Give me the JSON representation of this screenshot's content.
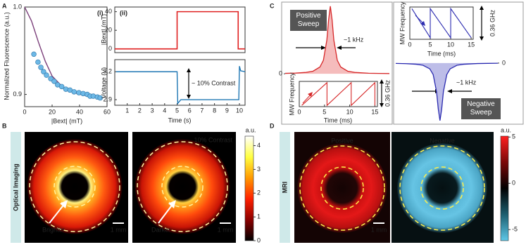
{
  "chart_data": [
    {
      "type": "line",
      "panel": "(i)",
      "ylabel": "Normalized Fluorescence (a.u.)",
      "xlabel": "|Bext| (mT)",
      "xlim": [
        0,
        60
      ],
      "ylim": [
        0.886,
        1.0
      ],
      "xticks": [
        0,
        20,
        40,
        60
      ],
      "yticks": [
        {
          "value": 1.0,
          "label": "1.0"
        },
        0.9
      ],
      "series": [
        {
          "color": "#7b3f7a",
          "x": [
            0,
            5,
            10,
            15,
            20,
            28,
            38,
            49,
            56
          ],
          "values": [
            1.0,
            0.984,
            0.96,
            0.938,
            0.921,
            0.908,
            0.901,
            0.897,
            0.896
          ]
        },
        {
          "color": "#6cb8e6",
          "marker": "circle",
          "x": [
            6.7,
            9.7,
            11.8,
            13.8,
            15.9,
            19,
            21.5,
            24,
            27,
            30,
            33,
            36,
            39.5,
            42.6,
            45.6,
            47.7,
            50,
            53,
            55
          ],
          "values": [
            0.946,
            0.937,
            0.931,
            0.926,
            0.922,
            0.918,
            0.915,
            0.911,
            0.909,
            0.906,
            0.905,
            0.903,
            0.902,
            0.901,
            0.9,
            0.898,
            0.898,
            0.897,
            0.896
          ]
        }
      ]
    },
    {
      "type": "line",
      "panel": "(ii)",
      "ylabel": "|Bext| (mT)",
      "xlim": [
        0,
        10.45
      ],
      "ylim": [
        -4,
        45
      ],
      "yticks": [
        0,
        20,
        40
      ],
      "series": [
        {
          "color": "#e02020",
          "x": [
            0,
            5,
            5,
            9.9,
            9.9,
            10.45
          ],
          "values": [
            0,
            0,
            40,
            40,
            0,
            0
          ]
        }
      ]
    },
    {
      "type": "line",
      "ylabel": "Voltage (V)",
      "xlabel": "Time (s)",
      "xlim": [
        0,
        10.45
      ],
      "ylim": [
        2.84,
        3.33
      ],
      "xticks": [
        1,
        2,
        3,
        4,
        5,
        6,
        7,
        8,
        9,
        10
      ],
      "yticks": [
        2.9,
        3.2
      ],
      "annotations": [
        "~ 10% Contrast"
      ],
      "series": [
        {
          "color": "#1f77b4",
          "x": [
            0.1,
            5.0,
            5.05,
            5.3,
            9.95,
            10.0,
            10.1,
            10.45
          ],
          "values": [
            3.2,
            3.2,
            2.86,
            2.9,
            2.9,
            3.26,
            3.21,
            3.2
          ]
        }
      ]
    },
    {
      "type": "area",
      "xlim": [
        0,
        30
      ],
      "ylim": [
        -0.03,
        1.03
      ],
      "yticks": [
        0
      ],
      "annotations": [
        "Positive Sweep",
        "~1 kHz"
      ],
      "series": [
        {
          "color": "#d62728",
          "fill": "#f5bcbc",
          "x": [
            0,
            3,
            6,
            8,
            10,
            11,
            12,
            12.5,
            13,
            13.5,
            14,
            15,
            16,
            18,
            20,
            24,
            27,
            30
          ],
          "values": [
            0.006,
            0.01,
            0.02,
            0.038,
            0.1,
            0.2,
            0.5,
            0.8,
            1,
            0.8,
            0.5,
            0.2,
            0.1,
            0.038,
            0.02,
            0.008,
            0.005,
            0.003
          ]
        }
      ]
    },
    {
      "type": "line",
      "ylabel": "MW Frequency",
      "xlabel": "Time (ms)",
      "xlim": [
        0,
        15.5
      ],
      "ylim": [
        -0.02,
        0.38
      ],
      "xticks": [
        0,
        5,
        10,
        15
      ],
      "annotations": [
        "0.36 GHz"
      ],
      "series": [
        {
          "color": "#d62728",
          "x": [
            0.5,
            5.5,
            5.5,
            10.3,
            10.3,
            15,
            15
          ],
          "values": [
            0,
            0.36,
            0,
            0.36,
            0,
            0.36,
            0
          ]
        }
      ]
    },
    {
      "type": "area",
      "xlim": [
        0,
        30
      ],
      "ylim": [
        -1.04,
        0.06
      ],
      "yticks": [
        0
      ],
      "annotations": [
        "~1 kHz",
        "Negative Sweep"
      ],
      "series": [
        {
          "color": "#2b2bb0",
          "fill": "#bdbde8",
          "x": [
            0,
            3,
            6,
            8,
            10,
            11,
            12,
            12.5,
            13,
            13.5,
            14,
            15,
            16,
            18,
            20,
            24,
            27,
            30
          ],
          "values": [
            -0.006,
            -0.01,
            -0.02,
            -0.038,
            -0.1,
            -0.2,
            -0.5,
            -0.8,
            -1,
            -0.8,
            -0.5,
            -0.2,
            -0.1,
            -0.038,
            -0.02,
            -0.008,
            -0.005,
            -0.003
          ]
        }
      ]
    },
    {
      "type": "line",
      "ylabel": "MW Frequency",
      "xlabel": "Time (ms)",
      "xlim": [
        0,
        15.5
      ],
      "ylim": [
        -0.02,
        0.38
      ],
      "xticks": [
        0,
        5,
        10,
        15
      ],
      "annotations": [
        "0.36 GHz"
      ],
      "series": [
        {
          "color": "#2b2bb0",
          "x": [
            0.5,
            5,
            5,
            10,
            10,
            15
          ],
          "values": [
            0.36,
            0,
            0.36,
            0,
            0.36,
            0
          ]
        }
      ]
    },
    {
      "type": "colorbar",
      "label": "a.u.",
      "ylim": [
        0,
        4.4
      ],
      "yticks": [
        0,
        1,
        2,
        3,
        4
      ],
      "colors": [
        "#000000",
        "#8b0000",
        "#ff2000",
        "#ff9900",
        "#ffff40",
        "#ffffff"
      ]
    },
    {
      "type": "colorbar",
      "label": "a.u.",
      "ylim": [
        -6.2,
        5.1
      ],
      "yticks": [
        5,
        0,
        -5
      ],
      "colors": [
        "#5ec8e8",
        "#1d5f70",
        "#000000",
        "#7a0808",
        "#ff2020"
      ]
    }
  ],
  "figure": {
    "panel_labels": [
      "A",
      "B",
      "C",
      "D"
    ],
    "optical_imaging": {
      "side_label": "Optical Imaging",
      "left_label": "Brighter",
      "right_label": "Darker",
      "contrast": "10% Contrast",
      "scale_bars": [
        "1 mm",
        "1 mm"
      ]
    },
    "mri": {
      "side_label": "MRI",
      "left_title": "Positive",
      "right_title": "Negative",
      "scale_bar": "1 mm"
    }
  }
}
